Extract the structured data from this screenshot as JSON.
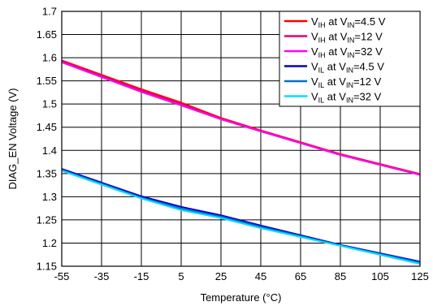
{
  "chart_data": {
    "type": "line",
    "xlabel": "Temperature (°C)",
    "ylabel": "DIAG_EN Voltage (V)",
    "xlim": [
      -55,
      125
    ],
    "ylim": [
      1.15,
      1.7
    ],
    "x_ticks": [
      "-55",
      "-35",
      "-15",
      "5",
      "25",
      "45",
      "65",
      "85",
      "105",
      "125"
    ],
    "y_ticks": [
      "1.7",
      "1.65",
      "1.6",
      "1.55",
      "1.5",
      "1.45",
      "1.4",
      "1.35",
      "1.3",
      "1.25",
      "1.2",
      "1.15"
    ],
    "grid": true,
    "legend_position": "top-right",
    "series": [
      {
        "name": "V_IH at V_IN=4.5 V",
        "legend": {
          "v": "V",
          "sub1": "IH",
          "mid": " at V",
          "sub2": "IN",
          "tail": "=4.5 V"
        },
        "color": "#ff0000",
        "x": [
          -55,
          -15,
          5,
          25,
          45,
          85,
          125
        ],
        "y": [
          1.594,
          1.532,
          1.503,
          1.47,
          1.443,
          1.392,
          1.349
        ]
      },
      {
        "name": "V_IH at V_IN=12 V",
        "legend": {
          "v": "V",
          "sub1": "IH",
          "mid": " at V",
          "sub2": "IN",
          "tail": "=12 V"
        },
        "color": "#e8006e",
        "x": [
          -55,
          -15,
          5,
          25,
          45,
          85,
          125
        ],
        "y": [
          1.592,
          1.529,
          1.5,
          1.468,
          1.442,
          1.391,
          1.348
        ]
      },
      {
        "name": "V_IH at V_IN=32 V",
        "legend": {
          "v": "V",
          "sub1": "IH",
          "mid": " at V",
          "sub2": "IN",
          "tail": "=32 V"
        },
        "color": "#ff00ff",
        "x": [
          -55,
          -15,
          5,
          25,
          45,
          85,
          125
        ],
        "y": [
          1.59,
          1.526,
          1.497,
          1.467,
          1.441,
          1.39,
          1.347
        ]
      },
      {
        "name": "V_IL at V_IN=4.5 V",
        "legend": {
          "v": "V",
          "sub1": "IL",
          "mid": " at V",
          "sub2": "IN",
          "tail": "=4.5 V"
        },
        "color": "#0000cc",
        "x": [
          -55,
          -15,
          5,
          25,
          45,
          85,
          125
        ],
        "y": [
          1.36,
          1.301,
          1.278,
          1.26,
          1.238,
          1.196,
          1.16
        ]
      },
      {
        "name": "V_IL at V_IN=12 V",
        "legend": {
          "v": "V",
          "sub1": "IL",
          "mid": " at V",
          "sub2": "IN",
          "tail": "=12 V"
        },
        "color": "#0070d0",
        "x": [
          -55,
          -15,
          5,
          25,
          45,
          85,
          125
        ],
        "y": [
          1.358,
          1.298,
          1.274,
          1.257,
          1.235,
          1.195,
          1.158
        ]
      },
      {
        "name": "V_IL at V_IN=32 V",
        "legend": {
          "v": "V",
          "sub1": "IL",
          "mid": " at V",
          "sub2": "IN",
          "tail": "=32 V"
        },
        "color": "#00e0ff",
        "x": [
          -55,
          -15,
          5,
          25,
          45,
          85,
          125
        ],
        "y": [
          1.356,
          1.296,
          1.271,
          1.254,
          1.232,
          1.194,
          1.155
        ]
      }
    ]
  }
}
